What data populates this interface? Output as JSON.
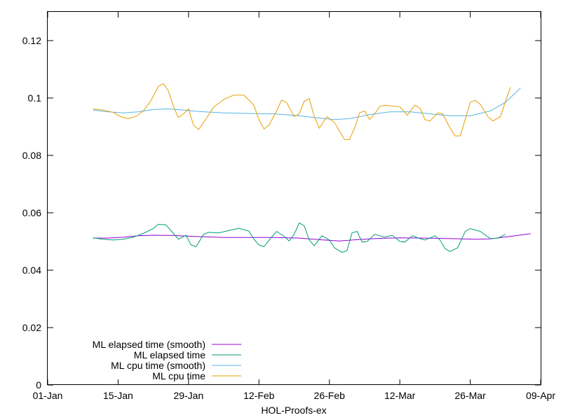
{
  "chart_data": {
    "type": "line",
    "xlabel": "HOL-Proofs-ex",
    "ylabel": "",
    "x_ticks": [
      "01-Jan",
      "15-Jan",
      "29-Jan",
      "12-Feb",
      "26-Feb",
      "12-Mar",
      "26-Mar",
      "09-Apr"
    ],
    "xlim_days": [
      0,
      98
    ],
    "y_ticks": [
      "0",
      "0.02",
      "0.04",
      "0.06",
      "0.08",
      "0.1",
      "0.12"
    ],
    "ylim": [
      0,
      0.13
    ],
    "grid": false,
    "legend_position": "bottom-left",
    "series": [
      {
        "name": "ML elapsed time (smooth)",
        "color": "#9400d3",
        "points": [
          [
            9,
            0.0512
          ],
          [
            12,
            0.0512
          ],
          [
            15,
            0.0515
          ],
          [
            18,
            0.052
          ],
          [
            21,
            0.0522
          ],
          [
            25,
            0.0521
          ],
          [
            30,
            0.0517
          ],
          [
            35,
            0.0514
          ],
          [
            40,
            0.0514
          ],
          [
            45,
            0.0514
          ],
          [
            50,
            0.0512
          ],
          [
            55,
            0.0505
          ],
          [
            58,
            0.0502
          ],
          [
            62,
            0.0507
          ],
          [
            66,
            0.0511
          ],
          [
            70,
            0.0513
          ],
          [
            75,
            0.0512
          ],
          [
            80,
            0.051
          ],
          [
            85,
            0.0508
          ],
          [
            88,
            0.0509
          ],
          [
            92,
            0.0518
          ],
          [
            96,
            0.0527
          ]
        ]
      },
      {
        "name": "ML elapsed time",
        "color": "#009e73",
        "points": [
          [
            9,
            0.0513
          ],
          [
            11,
            0.0508
          ],
          [
            13,
            0.0505
          ],
          [
            15,
            0.0508
          ],
          [
            17,
            0.0515
          ],
          [
            19,
            0.0528
          ],
          [
            21,
            0.0545
          ],
          [
            22,
            0.056
          ],
          [
            23.5,
            0.0558
          ],
          [
            25,
            0.0528
          ],
          [
            26,
            0.0508
          ],
          [
            27.5,
            0.0522
          ],
          [
            28.5,
            0.0488
          ],
          [
            29.5,
            0.0482
          ],
          [
            31,
            0.0525
          ],
          [
            32,
            0.0532
          ],
          [
            34,
            0.053
          ],
          [
            36,
            0.0538
          ],
          [
            38,
            0.0546
          ],
          [
            40,
            0.0536
          ],
          [
            41,
            0.0508
          ],
          [
            42,
            0.0488
          ],
          [
            43,
            0.0482
          ],
          [
            44.5,
            0.0515
          ],
          [
            45.5,
            0.0535
          ],
          [
            47,
            0.0518
          ],
          [
            48,
            0.0502
          ],
          [
            49,
            0.0525
          ],
          [
            50,
            0.0565
          ],
          [
            51,
            0.0555
          ],
          [
            52,
            0.0505
          ],
          [
            53,
            0.0485
          ],
          [
            54.5,
            0.052
          ],
          [
            56,
            0.0505
          ],
          [
            57,
            0.0478
          ],
          [
            58.5,
            0.0462
          ],
          [
            59.5,
            0.0468
          ],
          [
            60.5,
            0.053
          ],
          [
            61.5,
            0.0535
          ],
          [
            62.5,
            0.0498
          ],
          [
            63.5,
            0.05
          ],
          [
            65,
            0.0525
          ],
          [
            67,
            0.0515
          ],
          [
            68.5,
            0.0522
          ],
          [
            70,
            0.05
          ],
          [
            71,
            0.0498
          ],
          [
            72.5,
            0.052
          ],
          [
            74,
            0.051
          ],
          [
            75,
            0.0505
          ],
          [
            77,
            0.052
          ],
          [
            78,
            0.0505
          ],
          [
            79,
            0.0475
          ],
          [
            80,
            0.0465
          ],
          [
            81.5,
            0.0478
          ],
          [
            83,
            0.0535
          ],
          [
            84,
            0.0545
          ],
          [
            86,
            0.0535
          ],
          [
            88,
            0.051
          ],
          [
            89.5,
            0.0512
          ],
          [
            91,
            0.0525
          ]
        ]
      },
      {
        "name": "ML cpu time (smooth)",
        "color": "#56b4e9",
        "points": [
          [
            9,
            0.0958
          ],
          [
            12,
            0.0952
          ],
          [
            15,
            0.0948
          ],
          [
            18,
            0.0952
          ],
          [
            21,
            0.096
          ],
          [
            24,
            0.0962
          ],
          [
            27,
            0.0958
          ],
          [
            30,
            0.0953
          ],
          [
            35,
            0.0948
          ],
          [
            40,
            0.0946
          ],
          [
            45,
            0.0945
          ],
          [
            50,
            0.0938
          ],
          [
            54,
            0.093
          ],
          [
            57,
            0.0925
          ],
          [
            60,
            0.0928
          ],
          [
            64,
            0.0942
          ],
          [
            68,
            0.0952
          ],
          [
            72,
            0.0952
          ],
          [
            76,
            0.0945
          ],
          [
            80,
            0.0938
          ],
          [
            84,
            0.0938
          ],
          [
            88,
            0.0955
          ],
          [
            91,
            0.0985
          ],
          [
            94,
            0.1035
          ]
        ]
      },
      {
        "name": "ML cpu time",
        "color": "#e69f00",
        "points": [
          [
            9,
            0.0962
          ],
          [
            11,
            0.0958
          ],
          [
            13,
            0.095
          ],
          [
            14.5,
            0.0935
          ],
          [
            16,
            0.0928
          ],
          [
            17.5,
            0.0935
          ],
          [
            19,
            0.0955
          ],
          [
            20.5,
            0.099
          ],
          [
            22,
            0.104
          ],
          [
            23,
            0.105
          ],
          [
            24,
            0.1025
          ],
          [
            25,
            0.097
          ],
          [
            26,
            0.0932
          ],
          [
            27,
            0.0945
          ],
          [
            28,
            0.0962
          ],
          [
            29,
            0.0905
          ],
          [
            30,
            0.089
          ],
          [
            31,
            0.0915
          ],
          [
            33,
            0.0968
          ],
          [
            35,
            0.0995
          ],
          [
            37,
            0.101
          ],
          [
            39,
            0.101
          ],
          [
            41,
            0.0975
          ],
          [
            42,
            0.0925
          ],
          [
            43,
            0.0892
          ],
          [
            44,
            0.0905
          ],
          [
            45.5,
            0.0955
          ],
          [
            46.5,
            0.0993
          ],
          [
            47.5,
            0.0985
          ],
          [
            49,
            0.0935
          ],
          [
            50,
            0.0945
          ],
          [
            51,
            0.0988
          ],
          [
            52,
            0.0998
          ],
          [
            53,
            0.0935
          ],
          [
            54,
            0.0895
          ],
          [
            55.5,
            0.0935
          ],
          [
            57,
            0.0915
          ],
          [
            58,
            0.0885
          ],
          [
            59,
            0.0855
          ],
          [
            60,
            0.0855
          ],
          [
            61,
            0.0895
          ],
          [
            62,
            0.0948
          ],
          [
            63,
            0.0955
          ],
          [
            64,
            0.0925
          ],
          [
            65,
            0.0945
          ],
          [
            66,
            0.097
          ],
          [
            67,
            0.0975
          ],
          [
            68.5,
            0.0972
          ],
          [
            70,
            0.097
          ],
          [
            71.5,
            0.094
          ],
          [
            73,
            0.0975
          ],
          [
            74,
            0.0965
          ],
          [
            75,
            0.0925
          ],
          [
            76,
            0.092
          ],
          [
            77.5,
            0.0948
          ],
          [
            78.5,
            0.0945
          ],
          [
            80,
            0.0895
          ],
          [
            81,
            0.0868
          ],
          [
            82,
            0.0868
          ],
          [
            83,
            0.0925
          ],
          [
            84,
            0.0985
          ],
          [
            85,
            0.0992
          ],
          [
            86,
            0.0978
          ],
          [
            87.5,
            0.0935
          ],
          [
            88.5,
            0.092
          ],
          [
            90,
            0.0935
          ],
          [
            91,
            0.0988
          ],
          [
            92,
            0.1038
          ]
        ]
      }
    ]
  }
}
